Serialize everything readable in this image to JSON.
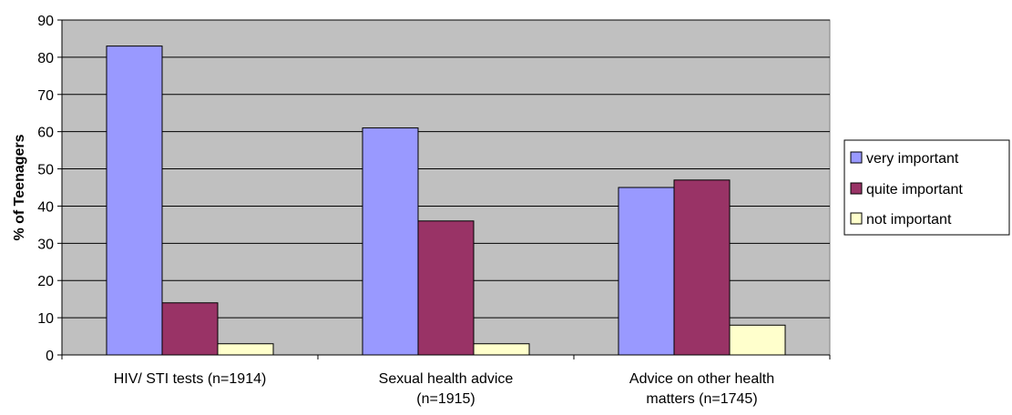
{
  "chart_data": {
    "type": "bar",
    "categories": [
      [
        "HIV/ STI tests (n=1914)"
      ],
      [
        "Sexual health advice",
        "(n=1915)"
      ],
      [
        "Advice on other health",
        "matters (n=1745)"
      ]
    ],
    "series": [
      {
        "name": "very important",
        "values": [
          83,
          61,
          45
        ],
        "color": "#9999ff"
      },
      {
        "name": "quite important",
        "values": [
          14,
          36,
          47
        ],
        "color": "#993366"
      },
      {
        "name": "not important",
        "values": [
          3,
          3,
          8
        ],
        "color": "#ffffcc"
      }
    ],
    "ylabel": "% of Teenagers",
    "ylim": [
      0,
      90
    ],
    "yticks": [
      0,
      10,
      20,
      30,
      40,
      50,
      60,
      70,
      80,
      90
    ],
    "grid": true,
    "legend": "right",
    "plot_background": "#c0c0c0"
  }
}
